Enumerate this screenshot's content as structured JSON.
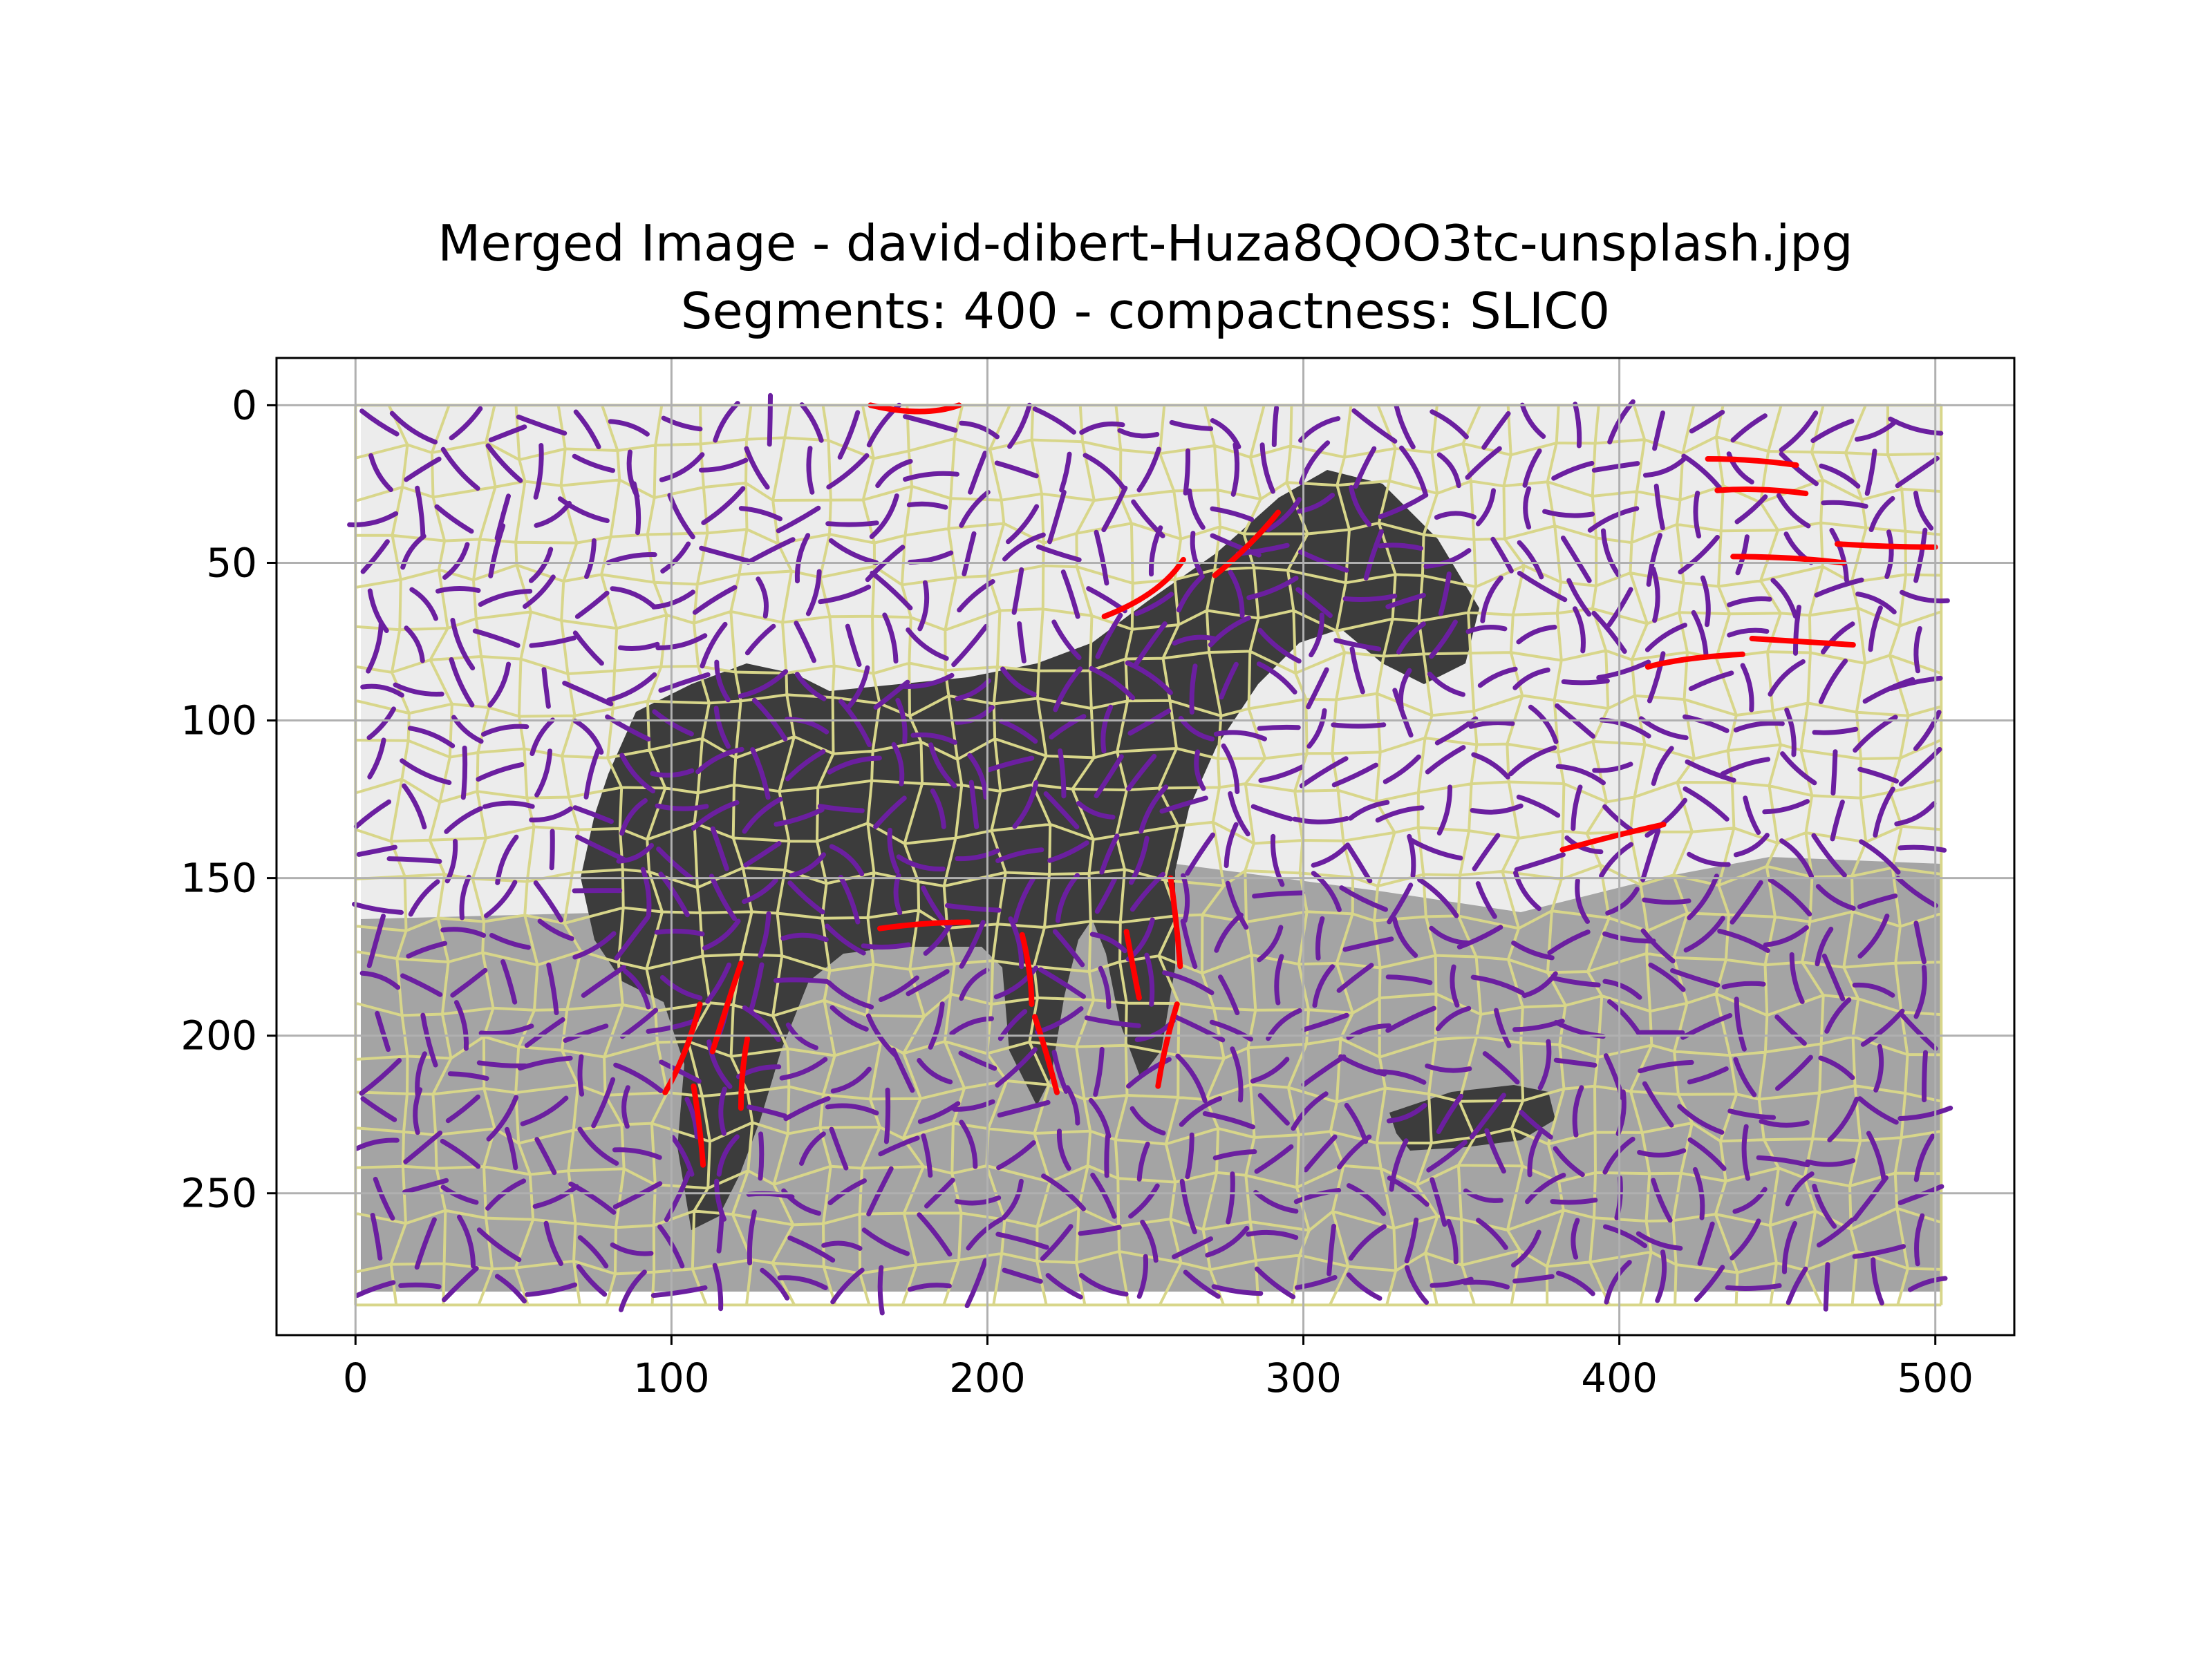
{
  "chart_data": {
    "type": "image",
    "title_line1": "Merged Image - david-dibert-Huza8QOO3tc-unsplash.jpg",
    "title_line2": "Segments: 400 - compactness: SLIC0",
    "xlabel": "",
    "ylabel": "",
    "xlim": [
      -25,
      525
    ],
    "ylim": [
      295,
      -15
    ],
    "image_extent": {
      "x": [
        0,
        500
      ],
      "y": [
        0,
        280
      ]
    },
    "x_ticks": [
      0,
      100,
      200,
      300,
      400,
      500
    ],
    "x_tick_labels": [
      "0",
      "100",
      "200",
      "300",
      "400",
      "500"
    ],
    "y_ticks": [
      0,
      50,
      100,
      150,
      200,
      250
    ],
    "y_tick_labels": [
      "0",
      "50",
      "100",
      "150",
      "200",
      "250"
    ],
    "grid": true,
    "colors": {
      "sky": "#ececec",
      "ground": "#a4a4a4",
      "horse": "#3c3c3c",
      "segment_boundary": "#d8d68a",
      "stroke_default": "#6b1fa0",
      "stroke_highlight": "#ff0000",
      "grid": "#b0b0b0"
    },
    "highlight_strokes": [
      {
        "points": [
          [
            163,
            0
          ],
          [
            180,
            4
          ],
          [
            191,
            0
          ]
        ]
      },
      {
        "points": [
          [
            237,
            67
          ],
          [
            255,
            60
          ],
          [
            262,
            49
          ]
        ]
      },
      {
        "points": [
          [
            272,
            54
          ],
          [
            284,
            44
          ],
          [
            292,
            34
          ]
        ]
      },
      {
        "points": [
          [
            428,
            17
          ],
          [
            442,
            17
          ],
          [
            456,
            19
          ]
        ]
      },
      {
        "points": [
          [
            431,
            27
          ],
          [
            445,
            26
          ],
          [
            459,
            28
          ]
        ]
      },
      {
        "points": [
          [
            436,
            48
          ],
          [
            455,
            48
          ],
          [
            471,
            50
          ]
        ]
      },
      {
        "points": [
          [
            469,
            44
          ],
          [
            485,
            45
          ],
          [
            500,
            45
          ]
        ]
      },
      {
        "points": [
          [
            409,
            83
          ],
          [
            420,
            80
          ],
          [
            439,
            79
          ]
        ]
      },
      {
        "points": [
          [
            442,
            74
          ],
          [
            458,
            75
          ],
          [
            474,
            76
          ]
        ]
      },
      {
        "points": [
          [
            382,
            141
          ],
          [
            400,
            136
          ],
          [
            414,
            133
          ]
        ]
      },
      {
        "points": [
          [
            166,
            166
          ],
          [
            180,
            164
          ],
          [
            194,
            164
          ]
        ]
      },
      {
        "points": [
          [
            122,
            177
          ],
          [
            117,
            192
          ],
          [
            113,
            205
          ]
        ]
      },
      {
        "points": [
          [
            109,
            190
          ],
          [
            105,
            206
          ],
          [
            98,
            218
          ]
        ]
      },
      {
        "points": [
          [
            107,
            216
          ],
          [
            109,
            228
          ],
          [
            110,
            241
          ]
        ]
      },
      {
        "points": [
          [
            124,
            201
          ],
          [
            122,
            212
          ],
          [
            122,
            223
          ]
        ]
      },
      {
        "points": [
          [
            211,
            168
          ],
          [
            214,
            180
          ],
          [
            214,
            190
          ]
        ]
      },
      {
        "points": [
          [
            215,
            194
          ],
          [
            219,
            206
          ],
          [
            222,
            218
          ]
        ]
      },
      {
        "points": [
          [
            258,
            150
          ],
          [
            260,
            165
          ],
          [
            261,
            178
          ]
        ]
      },
      {
        "points": [
          [
            260,
            190
          ],
          [
            256,
            203
          ],
          [
            254,
            216
          ]
        ]
      },
      {
        "points": [
          [
            244,
            167
          ],
          [
            246,
            178
          ],
          [
            248,
            188
          ]
        ]
      }
    ]
  }
}
